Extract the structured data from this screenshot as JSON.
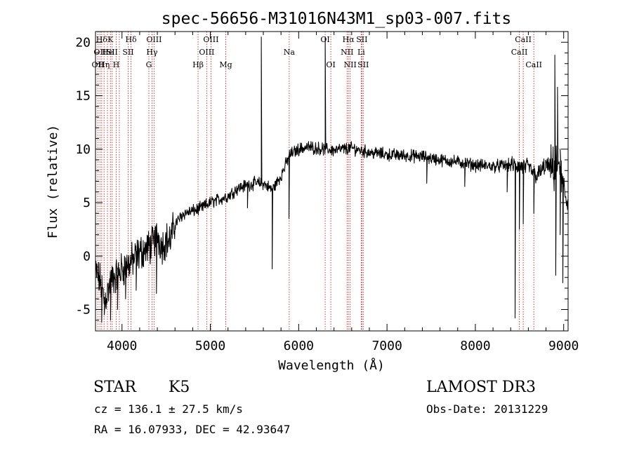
{
  "chart_data": {
    "type": "line",
    "title": "spec-56656-M31016N43M1_sp03-007.fits",
    "xlabel": "Wavelength (Å)",
    "ylabel": "Flux (relative)",
    "xlim": [
      3700,
      9050
    ],
    "ylim": [
      -7,
      21
    ],
    "xticks": [
      4000,
      5000,
      6000,
      7000,
      8000,
      9000
    ],
    "yticks": [
      -5,
      0,
      5,
      10,
      15,
      20
    ],
    "grid": false,
    "series": [
      {
        "name": "spectrum",
        "anchors": [
          [
            3700,
            -1.5
          ],
          [
            3760,
            -2.5
          ],
          [
            3800,
            -4.2
          ],
          [
            3850,
            -3.0
          ],
          [
            3900,
            -2.0
          ],
          [
            3950,
            -1.8
          ],
          [
            4000,
            -1.2
          ],
          [
            4100,
            -0.6
          ],
          [
            4200,
            0.3
          ],
          [
            4300,
            0.8
          ],
          [
            4350,
            1.2
          ],
          [
            4400,
            2.0
          ],
          [
            4450,
            1.0
          ],
          [
            4500,
            1.5
          ],
          [
            4550,
            1.5
          ],
          [
            4600,
            3.0
          ],
          [
            4700,
            4.0
          ],
          [
            4800,
            4.2
          ],
          [
            4900,
            4.5
          ],
          [
            5000,
            5.0
          ],
          [
            5100,
            5.3
          ],
          [
            5200,
            5.6
          ],
          [
            5300,
            6.3
          ],
          [
            5400,
            6.6
          ],
          [
            5500,
            6.8
          ],
          [
            5600,
            6.8
          ],
          [
            5700,
            6.2
          ],
          [
            5800,
            7.5
          ],
          [
            5900,
            9.5
          ],
          [
            6000,
            10.0
          ],
          [
            6100,
            10.2
          ],
          [
            6200,
            10.1
          ],
          [
            6300,
            10.0
          ],
          [
            6400,
            9.9
          ],
          [
            6500,
            10.0
          ],
          [
            6600,
            10.1
          ],
          [
            6700,
            9.9
          ],
          [
            6800,
            9.7
          ],
          [
            6900,
            9.6
          ],
          [
            7000,
            9.5
          ],
          [
            7200,
            9.4
          ],
          [
            7400,
            9.3
          ],
          [
            7600,
            9.0
          ],
          [
            7800,
            8.8
          ],
          [
            8000,
            8.5
          ],
          [
            8200,
            8.4
          ],
          [
            8400,
            8.5
          ],
          [
            8600,
            8.3
          ],
          [
            8700,
            7.5
          ],
          [
            8800,
            8.5
          ],
          [
            8900,
            8.0
          ],
          [
            8950,
            9.0
          ],
          [
            9000,
            6.0
          ],
          [
            9050,
            5.0
          ]
        ],
        "features": [
          {
            "x": 5577,
            "y": 20.5
          },
          {
            "x": 6300,
            "y": 20.5
          },
          {
            "x": 5700,
            "y": -1.2
          },
          {
            "x": 5890,
            "y": 3.5
          },
          {
            "x": 8498,
            "y": 2.5
          },
          {
            "x": 8542,
            "y": 3.0
          },
          {
            "x": 8662,
            "y": 4.0
          },
          {
            "x": 8900,
            "y": 18.8
          },
          {
            "x": 8910,
            "y": -1.8
          },
          {
            "x": 8930,
            "y": 15.8
          },
          {
            "x": 8960,
            "y": 2.0
          },
          {
            "x": 8990,
            "y": -2.5
          },
          {
            "x": 8450,
            "y": -5.8
          },
          {
            "x": 3770,
            "y": -6.2
          },
          {
            "x": 3800,
            "y": -5.5
          },
          {
            "x": 3870,
            "y": -6.0
          },
          {
            "x": 3950,
            "y": -5.0
          },
          {
            "x": 4040,
            "y": -4.0
          },
          {
            "x": 5420,
            "y": 4.5
          },
          {
            "x": 7450,
            "y": 6.8
          },
          {
            "x": 7880,
            "y": 6.5
          },
          {
            "x": 8360,
            "y": 6.0
          },
          {
            "x": 4160,
            "y": -3.2
          },
          {
            "x": 4390,
            "y": -3.5
          }
        ]
      }
    ],
    "line_markers": [
      {
        "wavelength": 3727,
        "label": "OII",
        "row": 2
      },
      {
        "wavelength": 3750,
        "label": "OII",
        "row": 1
      },
      {
        "wavelength": 3770,
        "label": "Hδ",
        "row": 0
      },
      {
        "wavelength": 3797,
        "label": "Hη",
        "row": 2
      },
      {
        "wavelength": 3835,
        "label": "He",
        "row": 1
      },
      {
        "wavelength": 3869,
        "label": "K",
        "row": 0
      },
      {
        "wavelength": 3889,
        "label": "SII",
        "row": 1
      },
      {
        "wavelength": 3934,
        "label": "H",
        "row": 2
      },
      {
        "wavelength": 3970,
        "label": "",
        "row": -1
      },
      {
        "wavelength": 4070,
        "label": "SII",
        "row": 1
      },
      {
        "wavelength": 4102,
        "label": "Hδ",
        "row": 0
      },
      {
        "wavelength": 4304,
        "label": "G",
        "row": 2
      },
      {
        "wavelength": 4340,
        "label": "Hγ",
        "row": 1
      },
      {
        "wavelength": 4363,
        "label": "OIII",
        "row": 0
      },
      {
        "wavelength": 4861,
        "label": "Hβ",
        "row": 2
      },
      {
        "wavelength": 4959,
        "label": "OIII",
        "row": 1
      },
      {
        "wavelength": 5007,
        "label": "OIII",
        "row": 0
      },
      {
        "wavelength": 5175,
        "label": "Mg",
        "row": 2
      },
      {
        "wavelength": 5893,
        "label": "Na",
        "row": 1
      },
      {
        "wavelength": 6300,
        "label": "OI",
        "row": 0
      },
      {
        "wavelength": 6364,
        "label": "OI",
        "row": 2
      },
      {
        "wavelength": 6548,
        "label": "NII",
        "row": 1
      },
      {
        "wavelength": 6563,
        "label": "Hα",
        "row": 0
      },
      {
        "wavelength": 6583,
        "label": "NII",
        "row": 2
      },
      {
        "wavelength": 6708,
        "label": "Li",
        "row": 1
      },
      {
        "wavelength": 6716,
        "label": "SII",
        "row": 0
      },
      {
        "wavelength": 6731,
        "label": "SII",
        "row": 2
      },
      {
        "wavelength": 8498,
        "label": "CaII",
        "row": 1
      },
      {
        "wavelength": 8542,
        "label": "CaII",
        "row": 0
      },
      {
        "wavelength": 8662,
        "label": "CaII",
        "row": 2
      }
    ]
  },
  "info": {
    "class": "STAR",
    "subclass": "K5",
    "survey": "LAMOST DR3",
    "cz": "cz = 136.1 ± 27.5 km/s",
    "obs_date": "Obs-Date: 20131229",
    "coords": "RA =  16.07933, DEC =  42.93647"
  },
  "colors": {
    "marker": "#c62828",
    "curve": "#000000"
  }
}
